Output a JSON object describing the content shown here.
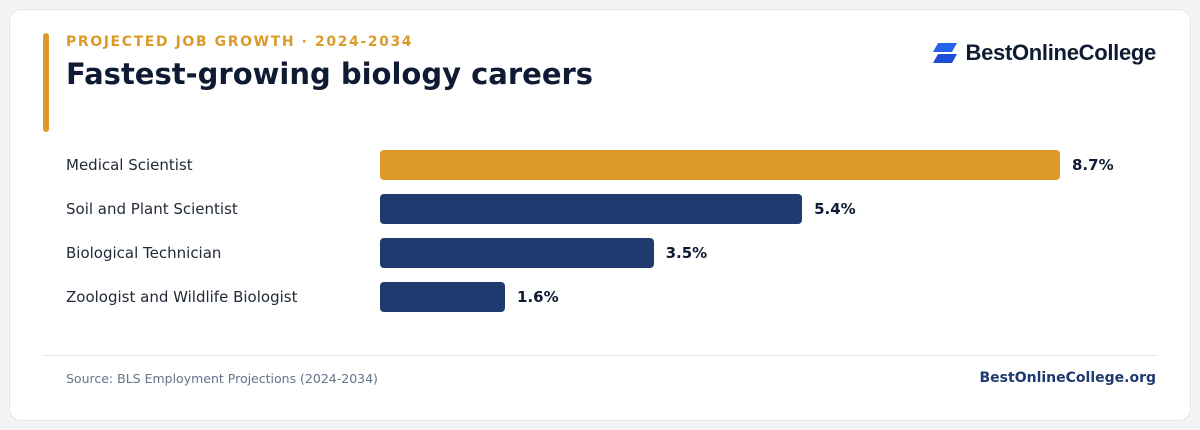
{
  "header": {
    "eyebrow": "PROJECTED JOB GROWTH · 2024-2034",
    "title": "Fastest-growing biology careers"
  },
  "brand": {
    "name": "BestOnlineCollege",
    "icon": "brand-logo-icon"
  },
  "colors": {
    "accent": "#dc9a28",
    "primary": "#1e3a6e",
    "brand_blue": "#2563eb"
  },
  "chart_data": {
    "type": "bar",
    "orientation": "horizontal",
    "categories": [
      "Medical Scientist",
      "Soil and Plant Scientist",
      "Biological Technician",
      "Zoologist and Wildlife Biologist"
    ],
    "values": [
      8.7,
      5.4,
      3.5,
      1.6
    ],
    "value_labels": [
      "8.7%",
      "5.4%",
      "3.5%",
      "1.6%"
    ],
    "unit": "%",
    "highlight_index": 0,
    "xlim": [
      0,
      8.7
    ],
    "grid": false,
    "legend": false
  },
  "footer": {
    "source": "Source: BLS Employment Projections (2024-2034)",
    "site": "BestOnlineCollege.org"
  }
}
